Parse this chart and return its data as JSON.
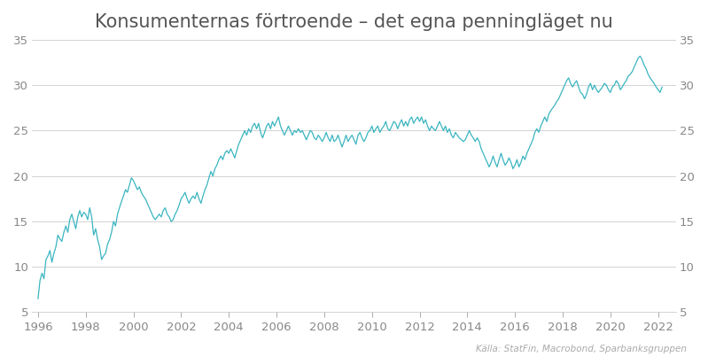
{
  "title": "Konsumenternas förtroende – det egna penningläget nu",
  "source_text": "Källa: StatFin, Macrobond, Sparbanksgruppen",
  "line_color": "#3ab5c0",
  "background_color": "#ffffff",
  "grid_color": "#cccccc",
  "ylim": [
    5,
    35
  ],
  "yticks": [
    5,
    10,
    15,
    20,
    25,
    30,
    35
  ],
  "xlim_start": 1995.75,
  "xlim_end": 2022.75,
  "xticks": [
    1996,
    1998,
    2000,
    2002,
    2004,
    2006,
    2008,
    2010,
    2012,
    2014,
    2016,
    2018,
    2020,
    2022
  ],
  "title_fontsize": 15,
  "tick_fontsize": 9.5,
  "source_fontsize": 7.5,
  "line_width": 0.9,
  "data": [
    [
      1996.0,
      6.5
    ],
    [
      1996.083,
      8.5
    ],
    [
      1996.167,
      9.3
    ],
    [
      1996.25,
      8.7
    ],
    [
      1996.333,
      10.8
    ],
    [
      1996.417,
      11.2
    ],
    [
      1996.5,
      11.8
    ],
    [
      1996.583,
      10.5
    ],
    [
      1996.667,
      11.5
    ],
    [
      1996.75,
      12.2
    ],
    [
      1996.833,
      13.5
    ],
    [
      1996.917,
      13.1
    ],
    [
      1997.0,
      12.8
    ],
    [
      1997.083,
      13.8
    ],
    [
      1997.167,
      14.5
    ],
    [
      1997.25,
      13.8
    ],
    [
      1997.333,
      15.2
    ],
    [
      1997.417,
      15.8
    ],
    [
      1997.5,
      15.0
    ],
    [
      1997.583,
      14.2
    ],
    [
      1997.667,
      15.5
    ],
    [
      1997.75,
      16.2
    ],
    [
      1997.833,
      15.5
    ],
    [
      1997.917,
      16.0
    ],
    [
      1998.0,
      15.8
    ],
    [
      1998.083,
      15.2
    ],
    [
      1998.167,
      16.5
    ],
    [
      1998.25,
      15.5
    ],
    [
      1998.333,
      13.5
    ],
    [
      1998.417,
      14.2
    ],
    [
      1998.5,
      13.0
    ],
    [
      1998.583,
      12.2
    ],
    [
      1998.667,
      10.8
    ],
    [
      1998.75,
      11.2
    ],
    [
      1998.833,
      11.5
    ],
    [
      1998.917,
      12.5
    ],
    [
      1999.0,
      13.0
    ],
    [
      1999.083,
      13.8
    ],
    [
      1999.167,
      15.0
    ],
    [
      1999.25,
      14.5
    ],
    [
      1999.333,
      15.8
    ],
    [
      1999.417,
      16.5
    ],
    [
      1999.5,
      17.2
    ],
    [
      1999.583,
      17.8
    ],
    [
      1999.667,
      18.5
    ],
    [
      1999.75,
      18.2
    ],
    [
      1999.833,
      19.0
    ],
    [
      1999.917,
      19.8
    ],
    [
      2000.0,
      19.5
    ],
    [
      2000.083,
      19.0
    ],
    [
      2000.167,
      18.5
    ],
    [
      2000.25,
      18.8
    ],
    [
      2000.333,
      18.2
    ],
    [
      2000.417,
      17.8
    ],
    [
      2000.5,
      17.5
    ],
    [
      2000.583,
      17.0
    ],
    [
      2000.667,
      16.5
    ],
    [
      2000.75,
      16.0
    ],
    [
      2000.833,
      15.5
    ],
    [
      2000.917,
      15.2
    ],
    [
      2001.0,
      15.5
    ],
    [
      2001.083,
      15.8
    ],
    [
      2001.167,
      15.5
    ],
    [
      2001.25,
      16.2
    ],
    [
      2001.333,
      16.5
    ],
    [
      2001.417,
      15.8
    ],
    [
      2001.5,
      15.5
    ],
    [
      2001.583,
      15.0
    ],
    [
      2001.667,
      15.2
    ],
    [
      2001.75,
      15.8
    ],
    [
      2001.833,
      16.2
    ],
    [
      2001.917,
      16.8
    ],
    [
      2002.0,
      17.5
    ],
    [
      2002.083,
      17.8
    ],
    [
      2002.167,
      18.2
    ],
    [
      2002.25,
      17.5
    ],
    [
      2002.333,
      17.0
    ],
    [
      2002.417,
      17.5
    ],
    [
      2002.5,
      17.8
    ],
    [
      2002.583,
      17.5
    ],
    [
      2002.667,
      18.2
    ],
    [
      2002.75,
      17.5
    ],
    [
      2002.833,
      17.0
    ],
    [
      2002.917,
      17.8
    ],
    [
      2003.0,
      18.5
    ],
    [
      2003.083,
      19.0
    ],
    [
      2003.167,
      19.8
    ],
    [
      2003.25,
      20.5
    ],
    [
      2003.333,
      20.0
    ],
    [
      2003.417,
      20.8
    ],
    [
      2003.5,
      21.2
    ],
    [
      2003.583,
      21.8
    ],
    [
      2003.667,
      22.2
    ],
    [
      2003.75,
      21.8
    ],
    [
      2003.833,
      22.5
    ],
    [
      2003.917,
      22.8
    ],
    [
      2004.0,
      22.5
    ],
    [
      2004.083,
      23.0
    ],
    [
      2004.167,
      22.5
    ],
    [
      2004.25,
      22.0
    ],
    [
      2004.333,
      22.8
    ],
    [
      2004.417,
      23.5
    ],
    [
      2004.5,
      24.0
    ],
    [
      2004.583,
      24.5
    ],
    [
      2004.667,
      25.0
    ],
    [
      2004.75,
      24.5
    ],
    [
      2004.833,
      25.2
    ],
    [
      2004.917,
      24.8
    ],
    [
      2005.0,
      25.5
    ],
    [
      2005.083,
      25.8
    ],
    [
      2005.167,
      25.2
    ],
    [
      2005.25,
      25.8
    ],
    [
      2005.333,
      24.8
    ],
    [
      2005.417,
      24.2
    ],
    [
      2005.5,
      24.8
    ],
    [
      2005.583,
      25.5
    ],
    [
      2005.667,
      25.8
    ],
    [
      2005.75,
      25.2
    ],
    [
      2005.833,
      26.0
    ],
    [
      2005.917,
      25.5
    ],
    [
      2006.0,
      26.0
    ],
    [
      2006.083,
      26.5
    ],
    [
      2006.167,
      25.5
    ],
    [
      2006.25,
      25.0
    ],
    [
      2006.333,
      24.5
    ],
    [
      2006.417,
      25.0
    ],
    [
      2006.5,
      25.5
    ],
    [
      2006.583,
      25.0
    ],
    [
      2006.667,
      24.5
    ],
    [
      2006.75,
      25.0
    ],
    [
      2006.833,
      24.8
    ],
    [
      2006.917,
      25.2
    ],
    [
      2007.0,
      24.8
    ],
    [
      2007.083,
      25.0
    ],
    [
      2007.167,
      24.5
    ],
    [
      2007.25,
      24.0
    ],
    [
      2007.333,
      24.5
    ],
    [
      2007.417,
      25.0
    ],
    [
      2007.5,
      24.8
    ],
    [
      2007.583,
      24.2
    ],
    [
      2007.667,
      24.0
    ],
    [
      2007.75,
      24.5
    ],
    [
      2007.833,
      24.2
    ],
    [
      2007.917,
      23.8
    ],
    [
      2008.0,
      24.2
    ],
    [
      2008.083,
      24.8
    ],
    [
      2008.167,
      24.2
    ],
    [
      2008.25,
      23.8
    ],
    [
      2008.333,
      24.5
    ],
    [
      2008.417,
      23.8
    ],
    [
      2008.5,
      24.0
    ],
    [
      2008.583,
      24.5
    ],
    [
      2008.667,
      23.8
    ],
    [
      2008.75,
      23.2
    ],
    [
      2008.833,
      23.8
    ],
    [
      2008.917,
      24.5
    ],
    [
      2009.0,
      23.8
    ],
    [
      2009.083,
      24.2
    ],
    [
      2009.167,
      24.5
    ],
    [
      2009.25,
      24.0
    ],
    [
      2009.333,
      23.5
    ],
    [
      2009.417,
      24.5
    ],
    [
      2009.5,
      24.8
    ],
    [
      2009.583,
      24.2
    ],
    [
      2009.667,
      23.8
    ],
    [
      2009.75,
      24.2
    ],
    [
      2009.833,
      24.8
    ],
    [
      2009.917,
      25.0
    ],
    [
      2010.0,
      25.5
    ],
    [
      2010.083,
      24.8
    ],
    [
      2010.167,
      25.2
    ],
    [
      2010.25,
      25.5
    ],
    [
      2010.333,
      24.8
    ],
    [
      2010.417,
      25.2
    ],
    [
      2010.5,
      25.5
    ],
    [
      2010.583,
      26.0
    ],
    [
      2010.667,
      25.2
    ],
    [
      2010.75,
      25.0
    ],
    [
      2010.833,
      25.5
    ],
    [
      2010.917,
      26.0
    ],
    [
      2011.0,
      25.8
    ],
    [
      2011.083,
      25.2
    ],
    [
      2011.167,
      25.8
    ],
    [
      2011.25,
      26.2
    ],
    [
      2011.333,
      25.5
    ],
    [
      2011.417,
      26.0
    ],
    [
      2011.5,
      25.5
    ],
    [
      2011.583,
      26.2
    ],
    [
      2011.667,
      26.5
    ],
    [
      2011.75,
      25.8
    ],
    [
      2011.833,
      26.2
    ],
    [
      2011.917,
      26.5
    ],
    [
      2012.0,
      26.0
    ],
    [
      2012.083,
      26.5
    ],
    [
      2012.167,
      25.8
    ],
    [
      2012.25,
      26.2
    ],
    [
      2012.333,
      25.5
    ],
    [
      2012.417,
      25.0
    ],
    [
      2012.5,
      25.5
    ],
    [
      2012.583,
      25.2
    ],
    [
      2012.667,
      25.0
    ],
    [
      2012.75,
      25.5
    ],
    [
      2012.833,
      26.0
    ],
    [
      2012.917,
      25.5
    ],
    [
      2013.0,
      25.0
    ],
    [
      2013.083,
      25.5
    ],
    [
      2013.167,
      24.8
    ],
    [
      2013.25,
      25.2
    ],
    [
      2013.333,
      24.5
    ],
    [
      2013.417,
      24.2
    ],
    [
      2013.5,
      24.8
    ],
    [
      2013.583,
      24.5
    ],
    [
      2013.667,
      24.2
    ],
    [
      2013.75,
      24.0
    ],
    [
      2013.833,
      23.8
    ],
    [
      2013.917,
      24.0
    ],
    [
      2014.0,
      24.5
    ],
    [
      2014.083,
      25.0
    ],
    [
      2014.167,
      24.5
    ],
    [
      2014.25,
      24.2
    ],
    [
      2014.333,
      23.8
    ],
    [
      2014.417,
      24.2
    ],
    [
      2014.5,
      23.8
    ],
    [
      2014.583,
      23.0
    ],
    [
      2014.667,
      22.5
    ],
    [
      2014.75,
      22.0
    ],
    [
      2014.833,
      21.5
    ],
    [
      2014.917,
      21.0
    ],
    [
      2015.0,
      21.5
    ],
    [
      2015.083,
      22.2
    ],
    [
      2015.167,
      21.5
    ],
    [
      2015.25,
      21.0
    ],
    [
      2015.333,
      21.8
    ],
    [
      2015.417,
      22.5
    ],
    [
      2015.5,
      21.8
    ],
    [
      2015.583,
      21.2
    ],
    [
      2015.667,
      21.5
    ],
    [
      2015.75,
      22.0
    ],
    [
      2015.833,
      21.5
    ],
    [
      2015.917,
      20.8
    ],
    [
      2016.0,
      21.2
    ],
    [
      2016.083,
      21.8
    ],
    [
      2016.167,
      21.0
    ],
    [
      2016.25,
      21.5
    ],
    [
      2016.333,
      22.2
    ],
    [
      2016.417,
      21.8
    ],
    [
      2016.5,
      22.5
    ],
    [
      2016.583,
      23.0
    ],
    [
      2016.667,
      23.5
    ],
    [
      2016.75,
      24.0
    ],
    [
      2016.833,
      24.8
    ],
    [
      2016.917,
      25.2
    ],
    [
      2017.0,
      24.8
    ],
    [
      2017.083,
      25.5
    ],
    [
      2017.167,
      26.0
    ],
    [
      2017.25,
      26.5
    ],
    [
      2017.333,
      26.0
    ],
    [
      2017.417,
      26.8
    ],
    [
      2017.5,
      27.2
    ],
    [
      2017.583,
      27.5
    ],
    [
      2017.667,
      27.8
    ],
    [
      2017.75,
      28.2
    ],
    [
      2017.833,
      28.5
    ],
    [
      2017.917,
      29.0
    ],
    [
      2018.0,
      29.5
    ],
    [
      2018.083,
      30.0
    ],
    [
      2018.167,
      30.5
    ],
    [
      2018.25,
      30.8
    ],
    [
      2018.333,
      30.2
    ],
    [
      2018.417,
      29.8
    ],
    [
      2018.5,
      30.2
    ],
    [
      2018.583,
      30.5
    ],
    [
      2018.667,
      29.8
    ],
    [
      2018.75,
      29.2
    ],
    [
      2018.833,
      29.0
    ],
    [
      2018.917,
      28.5
    ],
    [
      2019.0,
      29.0
    ],
    [
      2019.083,
      29.8
    ],
    [
      2019.167,
      30.2
    ],
    [
      2019.25,
      29.5
    ],
    [
      2019.333,
      30.0
    ],
    [
      2019.417,
      29.5
    ],
    [
      2019.5,
      29.2
    ],
    [
      2019.583,
      29.5
    ],
    [
      2019.667,
      29.8
    ],
    [
      2019.75,
      30.2
    ],
    [
      2019.833,
      30.0
    ],
    [
      2019.917,
      29.5
    ],
    [
      2020.0,
      29.2
    ],
    [
      2020.083,
      29.8
    ],
    [
      2020.167,
      30.0
    ],
    [
      2020.25,
      30.5
    ],
    [
      2020.333,
      30.2
    ],
    [
      2020.417,
      29.5
    ],
    [
      2020.5,
      29.8
    ],
    [
      2020.583,
      30.2
    ],
    [
      2020.667,
      30.5
    ],
    [
      2020.75,
      31.0
    ],
    [
      2020.833,
      31.2
    ],
    [
      2020.917,
      31.5
    ],
    [
      2021.0,
      32.0
    ],
    [
      2021.083,
      32.5
    ],
    [
      2021.167,
      33.0
    ],
    [
      2021.25,
      33.2
    ],
    [
      2021.333,
      32.8
    ],
    [
      2021.417,
      32.2
    ],
    [
      2021.5,
      31.8
    ],
    [
      2021.583,
      31.2
    ],
    [
      2021.667,
      30.8
    ],
    [
      2021.75,
      30.5
    ],
    [
      2021.833,
      30.2
    ],
    [
      2021.917,
      29.8
    ],
    [
      2022.0,
      29.5
    ],
    [
      2022.083,
      29.2
    ],
    [
      2022.167,
      29.8
    ]
  ]
}
